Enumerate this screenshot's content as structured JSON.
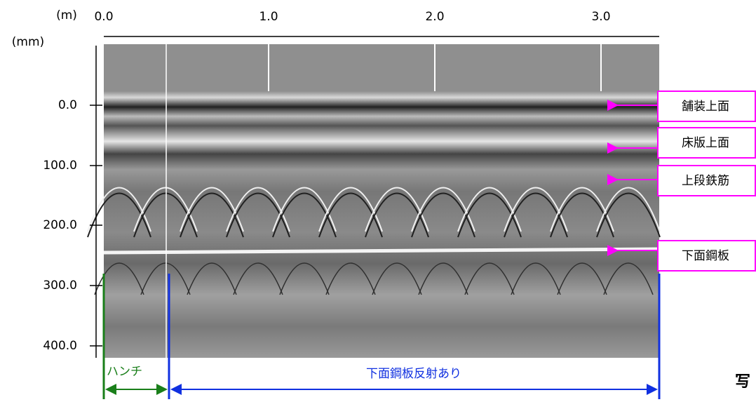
{
  "x_axis": {
    "unit": "(m)",
    "ticks": [
      "0.0",
      "1.0",
      "2.0",
      "3.0"
    ]
  },
  "y_axis": {
    "unit": "(mm)",
    "ticks": [
      "0.0",
      "100.0",
      "200.0",
      "300.0",
      "400.0"
    ]
  },
  "annotations": [
    "舗装上面",
    "床版上面",
    "上段鉄筋",
    "下面鋼板"
  ],
  "ranges": [
    "ハンチ",
    "下面鋼板反射あり"
  ],
  "caption": "写"
}
